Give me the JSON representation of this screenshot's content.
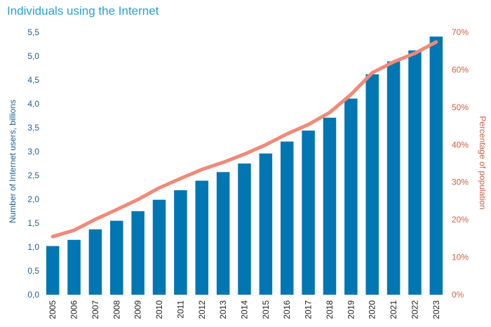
{
  "chart_data": {
    "type": "bar+line",
    "title": "Individuals using the Internet",
    "categories": [
      "2005",
      "2006",
      "2007",
      "2008",
      "2009",
      "2010",
      "2011",
      "2012",
      "2013",
      "2014",
      "2015",
      "2016",
      "2017",
      "2018",
      "2019",
      "2020",
      "2021",
      "2022",
      "2023"
    ],
    "series": [
      {
        "type": "bar",
        "axis": "left",
        "color": "#0076b2",
        "values": [
          1.02,
          1.15,
          1.37,
          1.55,
          1.75,
          1.99,
          2.19,
          2.39,
          2.57,
          2.75,
          2.96,
          3.21,
          3.44,
          3.71,
          4.11,
          4.62,
          4.89,
          5.12,
          5.41
        ]
      },
      {
        "type": "line",
        "axis": "right",
        "color": "#f08a78",
        "values": [
          15.5,
          17.2,
          20.1,
          22.7,
          25.4,
          28.5,
          31.0,
          33.4,
          35.3,
          37.5,
          40.0,
          42.9,
          45.4,
          48.6,
          53.4,
          59.2,
          62.1,
          64.4,
          67.4
        ]
      }
    ],
    "ylabel": "Number of Internet users, billions",
    "ylabel_right": "Percentage of population",
    "ylim": [
      0,
      5.5
    ],
    "ylim_right": [
      0,
      70
    ],
    "yticks": [
      "0,0",
      "0,5",
      "1,0",
      "1,5",
      "2,0",
      "2,5",
      "3,0",
      "3,5",
      "4,0",
      "4,5",
      "5,0",
      "5,5"
    ],
    "yticks_right": [
      "0%",
      "10%",
      "20%",
      "30%",
      "40%",
      "50%",
      "60%",
      "70%"
    ],
    "grid": false,
    "legend": "none"
  }
}
